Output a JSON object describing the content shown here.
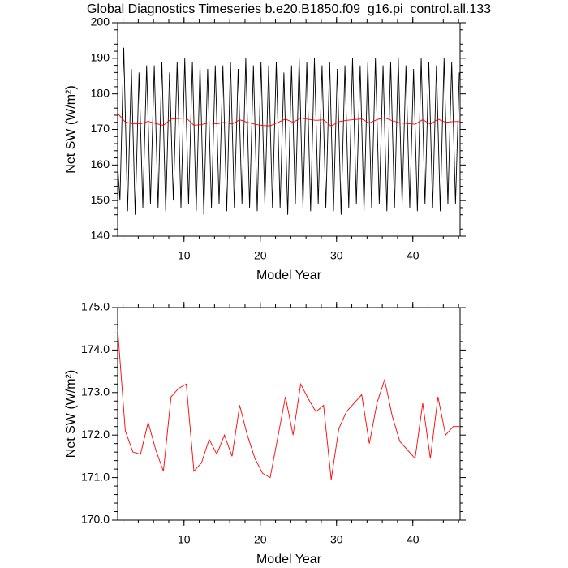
{
  "chart_data": [
    {
      "type": "line",
      "title": "Global Diagnostics Timeseries b.e20.B1850.f09_g16.pi_control.all.133",
      "xlabel": "Model Year",
      "ylabel": "Net SW (W/m²)",
      "xlim": [
        1.3,
        46.2
      ],
      "xticks": [
        10,
        20,
        30,
        40
      ],
      "ylim": [
        140,
        200
      ],
      "yticks": [
        140,
        150,
        160,
        170,
        180,
        190,
        200
      ],
      "series": [
        {
          "color": "#000000",
          "x": [
            1.3,
            1.6,
            2.1,
            2.6,
            3.1,
            3.6,
            4.1,
            4.6,
            5.1,
            5.6,
            6.1,
            6.6,
            7.1,
            7.6,
            8.1,
            8.6,
            9.1,
            9.6,
            10.1,
            10.6,
            11.1,
            11.6,
            12.1,
            12.6,
            13.1,
            13.6,
            14.1,
            14.6,
            15.1,
            15.6,
            16.1,
            16.6,
            17.1,
            17.6,
            18.1,
            18.6,
            19.1,
            19.6,
            20.1,
            20.6,
            21.1,
            21.6,
            22.1,
            22.6,
            23.1,
            23.6,
            24.1,
            24.6,
            25.1,
            25.6,
            26.1,
            26.6,
            27.1,
            27.6,
            28.1,
            28.6,
            29.1,
            29.6,
            30.1,
            30.6,
            31.1,
            31.6,
            32.1,
            32.6,
            33.1,
            33.6,
            34.1,
            34.6,
            35.1,
            35.6,
            36.1,
            36.6,
            37.1,
            37.6,
            38.1,
            38.6,
            39.1,
            39.6,
            40.1,
            40.6,
            41.1,
            41.6,
            42.1,
            42.6,
            43.1,
            43.6,
            44.1,
            44.6,
            45.1,
            45.6,
            46.1
          ],
          "values": [
            160,
            150,
            193,
            147,
            187,
            146,
            186,
            148,
            188,
            149,
            188,
            148,
            189,
            147,
            186,
            150,
            189,
            148,
            190,
            149,
            189,
            147,
            188,
            146,
            187,
            148,
            188,
            149,
            188,
            147,
            189,
            148,
            187,
            149,
            190,
            148,
            188,
            147,
            189,
            149,
            188,
            148,
            189,
            148,
            186,
            146,
            188,
            149,
            190,
            148,
            189,
            147,
            190,
            149,
            188,
            148,
            189,
            147,
            187,
            146,
            188,
            148,
            190,
            149,
            188,
            147,
            189,
            148,
            190,
            149,
            188,
            147,
            189,
            148,
            190,
            149,
            188,
            148,
            187,
            147,
            190,
            149,
            189,
            148,
            188,
            147,
            190,
            149,
            189,
            149,
            186
          ]
        },
        {
          "color": "#ff0000",
          "x": [
            1.3,
            2.3,
            3.3,
            4.3,
            5.3,
            6.3,
            7.3,
            8.3,
            9.3,
            10.3,
            11.3,
            12.3,
            13.3,
            14.3,
            15.3,
            16.3,
            17.3,
            18.3,
            19.3,
            20.3,
            21.3,
            22.3,
            23.3,
            24.3,
            25.3,
            26.3,
            27.3,
            28.3,
            29.3,
            30.3,
            31.3,
            32.3,
            33.3,
            34.3,
            35.3,
            36.3,
            37.3,
            38.3,
            39.3,
            40.3,
            41.3,
            42.3,
            43.3,
            44.3,
            45.3,
            46.2
          ],
          "values": [
            174.5,
            172.1,
            171.6,
            171.55,
            172.3,
            171.65,
            171.15,
            172.9,
            173.1,
            173.2,
            171.15,
            171.35,
            171.9,
            171.55,
            172.0,
            171.5,
            172.7,
            172.0,
            171.45,
            171.1,
            171.0,
            171.95,
            172.9,
            172.0,
            173.2,
            172.85,
            172.55,
            172.7,
            170.95,
            172.15,
            172.55,
            172.75,
            172.95,
            171.8,
            172.75,
            173.3,
            172.45,
            171.85,
            171.65,
            171.45,
            172.75,
            171.45,
            172.9,
            172.0,
            172.2,
            172.2
          ]
        }
      ]
    },
    {
      "type": "line",
      "xlabel": "Model Year",
      "ylabel": "Net SW (W/m²)",
      "xlim": [
        1.3,
        46.2
      ],
      "xticks": [
        10,
        20,
        30,
        40
      ],
      "ylim": [
        170,
        175
      ],
      "yticks": [
        {
          "value": 170,
          "label": "170.0"
        },
        {
          "value": 171,
          "label": "171.0"
        },
        {
          "value": 172,
          "label": "172.0"
        },
        {
          "value": 173,
          "label": "173.0"
        },
        {
          "value": 174,
          "label": "174.0"
        },
        {
          "value": 175,
          "label": "175.0"
        }
      ],
      "series": [
        {
          "color": "#ff0000",
          "x": [
            1.3,
            2.3,
            3.3,
            4.3,
            5.3,
            6.3,
            7.3,
            8.3,
            9.3,
            10.3,
            11.3,
            12.3,
            13.3,
            14.3,
            15.3,
            16.3,
            17.3,
            18.3,
            19.3,
            20.3,
            21.3,
            22.3,
            23.3,
            24.3,
            25.3,
            26.3,
            27.3,
            28.3,
            29.3,
            30.3,
            31.3,
            32.3,
            33.3,
            34.3,
            35.3,
            36.3,
            37.3,
            38.3,
            39.3,
            40.3,
            41.3,
            42.3,
            43.3,
            44.3,
            45.3,
            46.2
          ],
          "values": [
            174.5,
            172.1,
            171.6,
            171.55,
            172.3,
            171.65,
            171.15,
            172.9,
            173.1,
            173.2,
            171.15,
            171.35,
            171.9,
            171.55,
            172.0,
            171.5,
            172.7,
            172.0,
            171.45,
            171.1,
            171.0,
            171.95,
            172.9,
            172.0,
            173.2,
            172.85,
            172.55,
            172.7,
            170.95,
            172.15,
            172.55,
            172.75,
            172.95,
            171.8,
            172.75,
            173.3,
            172.45,
            171.85,
            171.65,
            171.45,
            172.75,
            171.45,
            172.9,
            172.0,
            172.2,
            172.2
          ]
        }
      ]
    }
  ]
}
